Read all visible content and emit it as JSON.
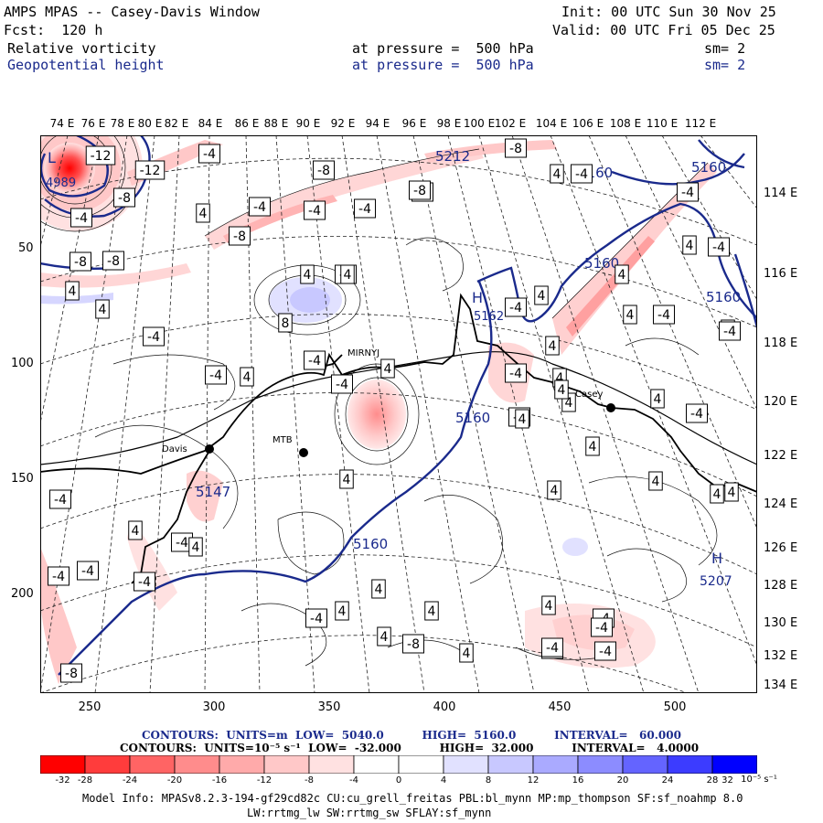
{
  "header": {
    "title": "AMPS MPAS -- Casey-Davis Window",
    "init": "Init: 00 UTC Sun 30 Nov 25",
    "fcst": "Fcst:  120 h",
    "valid": "Valid: 00 UTC Fri 05 Dec 25",
    "field1": "Relative vorticity",
    "field1_level": "at pressure =  500 hPa",
    "field1_sm": "sm= 2",
    "field2": "Geopotential height",
    "field2_level": "at pressure =  500 hPa",
    "field2_sm": "sm= 2"
  },
  "top_lon_labels": [
    "74 E",
    "76 E",
    "78 E",
    "80 E",
    "82 E",
    "84 E",
    "86 E",
    "88 E",
    "90 E",
    "92 E",
    "94 E",
    "96 E",
    "98 E",
    "100 E",
    "102 E",
    "104 E",
    "106 E",
    "108 E",
    "110 E",
    "112 E"
  ],
  "right_lon_labels": [
    "114 E",
    "116 E",
    "118 E",
    "120 E",
    "122 E",
    "124 E",
    "126 E",
    "128 E",
    "130 E",
    "132 E",
    "134 E"
  ],
  "left_axis_labels": [
    "50",
    "100",
    "150",
    "200"
  ],
  "bottom_axis_labels": [
    "250",
    "300",
    "350",
    "400",
    "450",
    "500"
  ],
  "stations": [
    {
      "name": "MIRNYJ"
    },
    {
      "name": "Casey"
    },
    {
      "name": "Davis"
    },
    {
      "name": "MTB"
    }
  ],
  "highs_lows": [
    {
      "letter": "L",
      "value": "4989"
    },
    {
      "letter": "H",
      "value": "5162"
    },
    {
      "letter": "H",
      "value": "5207"
    }
  ],
  "height_labels": [
    "5160",
    "5160",
    "5160",
    "5160",
    "5160",
    "5160",
    "5212",
    "5147"
  ],
  "vort_value_labels": [
    "-12",
    "-12",
    "-8",
    "-8",
    "-4",
    "-4",
    "-4",
    "-4",
    "-4",
    "-4",
    "-8",
    "4",
    "4",
    "8",
    "4",
    "-4",
    "-4",
    "-8",
    "4",
    "-8",
    "-4",
    "4",
    "-4",
    "4",
    "-4",
    "4",
    "-8",
    "-8",
    "4",
    "-4",
    "-4",
    "-4",
    "4",
    "4",
    "4",
    "4",
    "-4",
    "4",
    "4",
    "4",
    "4",
    "-4",
    "-4",
    "4",
    "4",
    "-4",
    "4",
    "4",
    "-4",
    "4",
    "4",
    "-4",
    "4",
    "-4",
    "4",
    "4",
    "-4",
    "4",
    "-4",
    "-4",
    "4",
    "4",
    "4",
    "4",
    "-8",
    "-4",
    "-8",
    "-4",
    "-4",
    "4",
    "-4",
    "-4",
    "4",
    "4",
    "-4",
    "-4"
  ],
  "legend": {
    "contours1": "CONTOURS:  UNITS=m  LOW=  5040.0          HIGH=  5160.0          INTERVAL=   60.000",
    "contours2": "CONTOURS:  UNITS=10⁻⁵ s⁻¹  LOW=  -32.000          HIGH=  32.000          INTERVAL=   4.0000",
    "ticks": [
      "-32",
      "-28",
      "-24",
      "-20",
      "-16",
      "-12",
      "-8",
      "-4",
      "0",
      "4",
      "8",
      "12",
      "16",
      "20",
      "24",
      "28",
      "32"
    ],
    "units": "10⁻⁵ s⁻¹",
    "colors": [
      "#ff0000",
      "#ff3c3c",
      "#ff6464",
      "#ff8c8c",
      "#ffaaaa",
      "#ffc8c8",
      "#ffe1e1",
      "#ffffff",
      "#ffffff",
      "#e1e1ff",
      "#c8c8ff",
      "#aaaaff",
      "#8c8cff",
      "#6464ff",
      "#3c3cff",
      "#0000ff"
    ],
    "model_line1": "Model Info: MPASv8.2.3-194-gf29cd82c CU:cu_grell_freitas PBL:bl_mynn MP:mp_thompson SF:sf_noahmp 8.0",
    "model_line2": "LW:rrtmg_lw SW:rrtmg_sw SFLAY:sf_mynn"
  }
}
